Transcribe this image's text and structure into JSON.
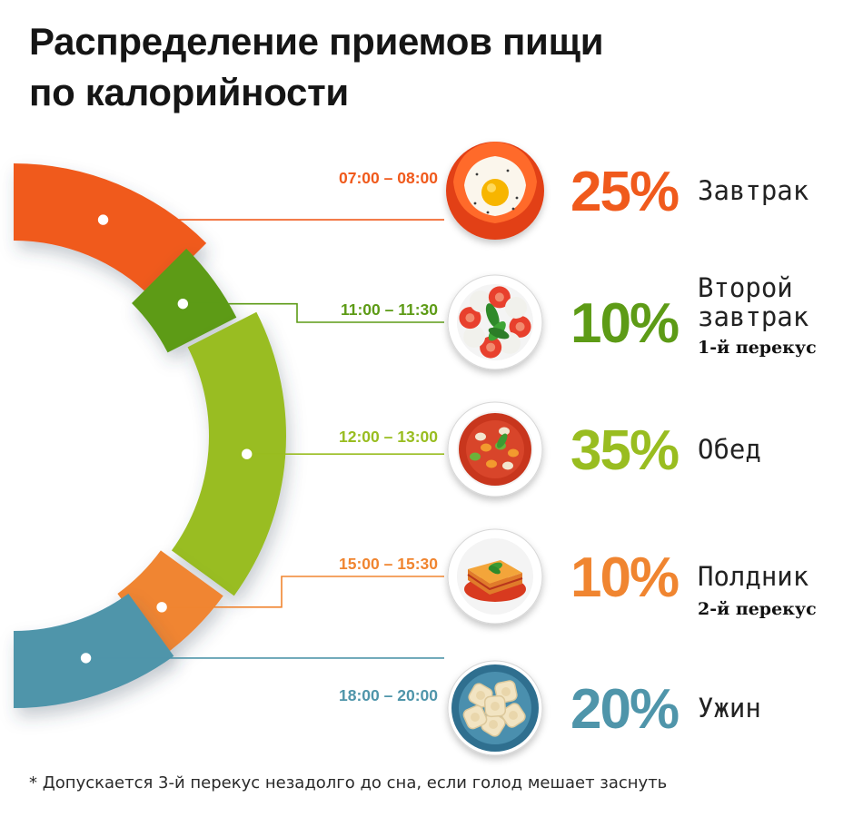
{
  "title": {
    "line1": "Распределение приемов пищи",
    "line2": "по калорийности"
  },
  "chart_data": {
    "type": "pie",
    "title": "Распределение приемов пищи по калорийности",
    "unit": "%",
    "series": [
      {
        "name": "meals",
        "categories": [
          "Завтрак",
          "Второй завтрак",
          "Обед",
          "Полдник",
          "Ужин"
        ],
        "values": [
          25,
          10,
          35,
          10,
          20
        ]
      }
    ],
    "slices": [
      {
        "meal": "Завтрак",
        "value": 25,
        "label": "25%",
        "time": "07:00 – 08:00",
        "sub": "",
        "color": "#f05a1c",
        "food_icon": "fried-egg-icon"
      },
      {
        "meal": "Второй\nзавтрак",
        "value": 10,
        "label": "10%",
        "time": "11:00 – 11:30",
        "sub": "1-й перекус",
        "color": "#5d9b16",
        "food_icon": "caprese-salad-icon"
      },
      {
        "meal": "Обед",
        "value": 35,
        "label": "35%",
        "time": "12:00 – 13:00",
        "sub": "",
        "color": "#99bd20",
        "food_icon": "minestrone-soup-icon"
      },
      {
        "meal": "Полдник",
        "value": 10,
        "label": "10%",
        "time": "15:00 – 15:30",
        "sub": "2-й перекус",
        "color": "#f08530",
        "food_icon": "lasagna-icon"
      },
      {
        "meal": "Ужин",
        "value": 20,
        "label": "20%",
        "time": "18:00 – 20:00",
        "sub": "",
        "color": "#4f95aa",
        "food_icon": "ravioli-icon"
      }
    ]
  },
  "footnote": "* Допускается 3-й перекус незадолго до сна, если голод мешает заснуть"
}
